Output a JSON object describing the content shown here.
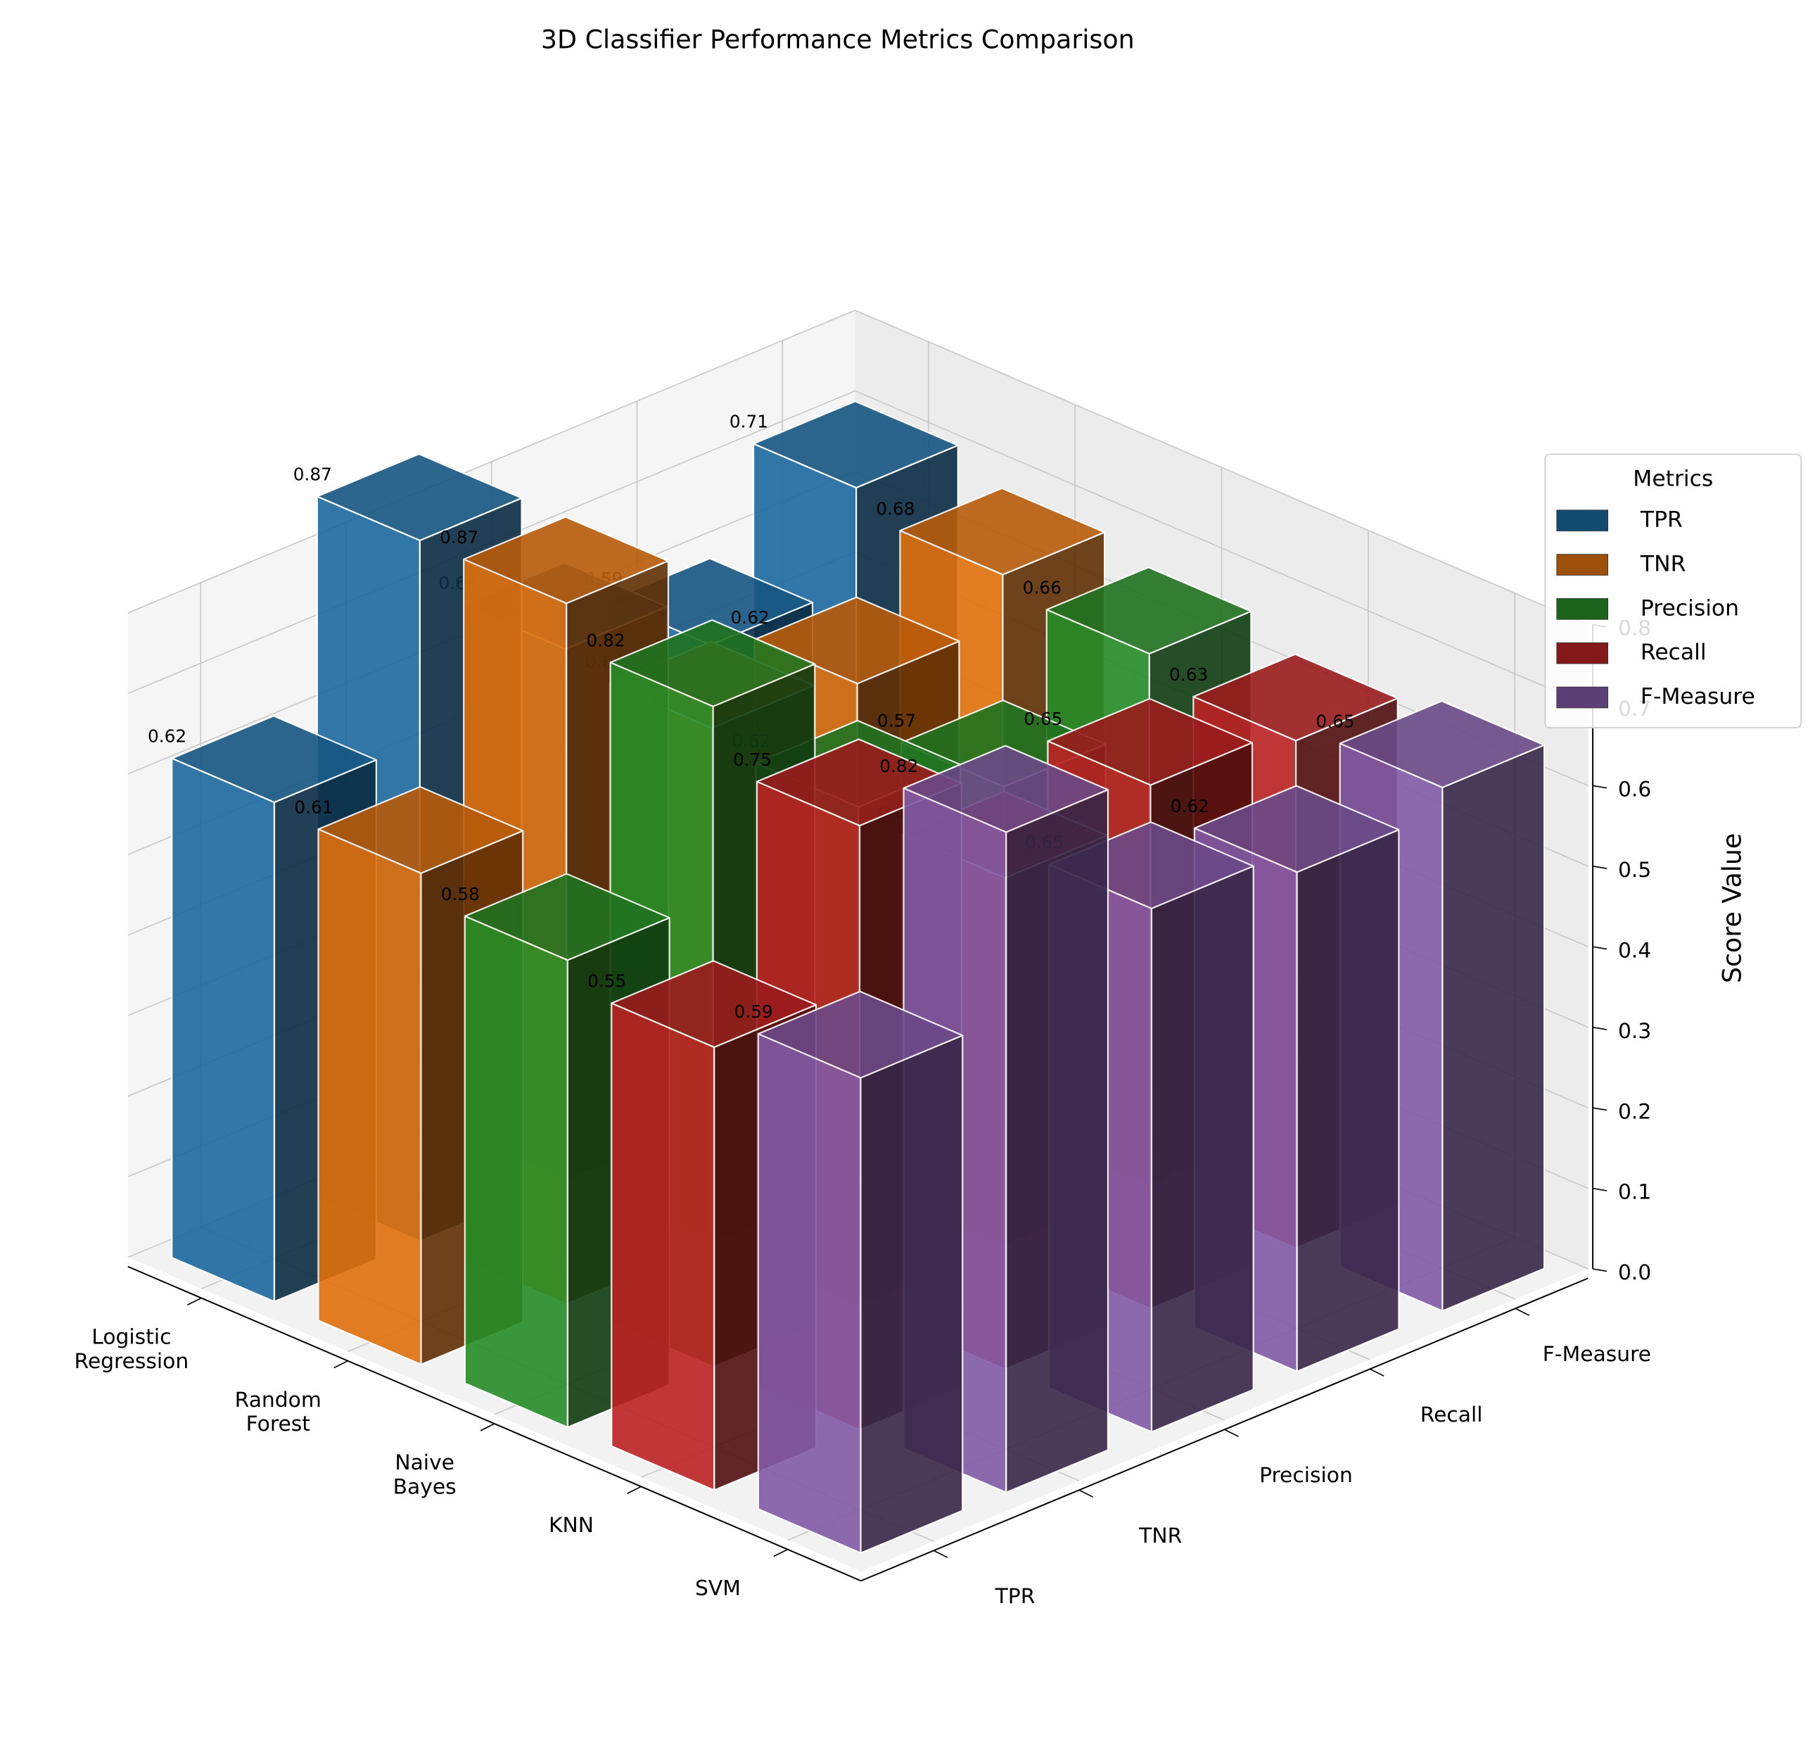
{
  "chart_data": {
    "type": "bar3d",
    "title": "3D Classifier Performance Metrics Comparison",
    "zlabel": "Score Value",
    "categories": [
      "Logistic\nRegression",
      "Random\nForest",
      "Naive\nBayes",
      "KNN",
      "SVM"
    ],
    "metrics": [
      "TPR",
      "TNR",
      "Precision",
      "Recall",
      "F-Measure"
    ],
    "legend_title": "Metrics",
    "legend_position": "right",
    "series": [
      {
        "name": "TPR",
        "color": "#1f77b4",
        "values": [
          0.62,
          0.87,
          0.66,
          0.59,
          0.71
        ]
      },
      {
        "name": "TNR",
        "color": "#ff7f0e",
        "values": [
          0.61,
          0.87,
          0.64,
          0.62,
          0.68
        ]
      },
      {
        "name": "Precision",
        "color": "#2ca02c",
        "values": [
          0.58,
          0.82,
          0.62,
          0.57,
          0.66
        ]
      },
      {
        "name": "Recall",
        "color": "#d62728",
        "values": [
          0.55,
          0.75,
          0.61,
          0.65,
          0.63
        ]
      },
      {
        "name": "F-Measure",
        "color": "#9467bd",
        "values": [
          0.59,
          0.82,
          0.65,
          0.62,
          0.65
        ]
      }
    ],
    "zlim": [
      0,
      0.8
    ],
    "zticks": [
      {
        "value": 0,
        "label": "0.0"
      },
      {
        "value": 0.1,
        "label": "0.1"
      },
      {
        "value": 0.2,
        "label": "0.2"
      },
      {
        "value": 0.3,
        "label": "0.3"
      },
      {
        "value": 0.4,
        "label": "0.4"
      },
      {
        "value": 0.5,
        "label": "0.5"
      },
      {
        "value": 0.6,
        "label": "0.6"
      },
      {
        "value": 0.7,
        "label": "0.7"
      },
      {
        "value": 0.8,
        "label": "0.8"
      }
    ],
    "grid": true
  }
}
